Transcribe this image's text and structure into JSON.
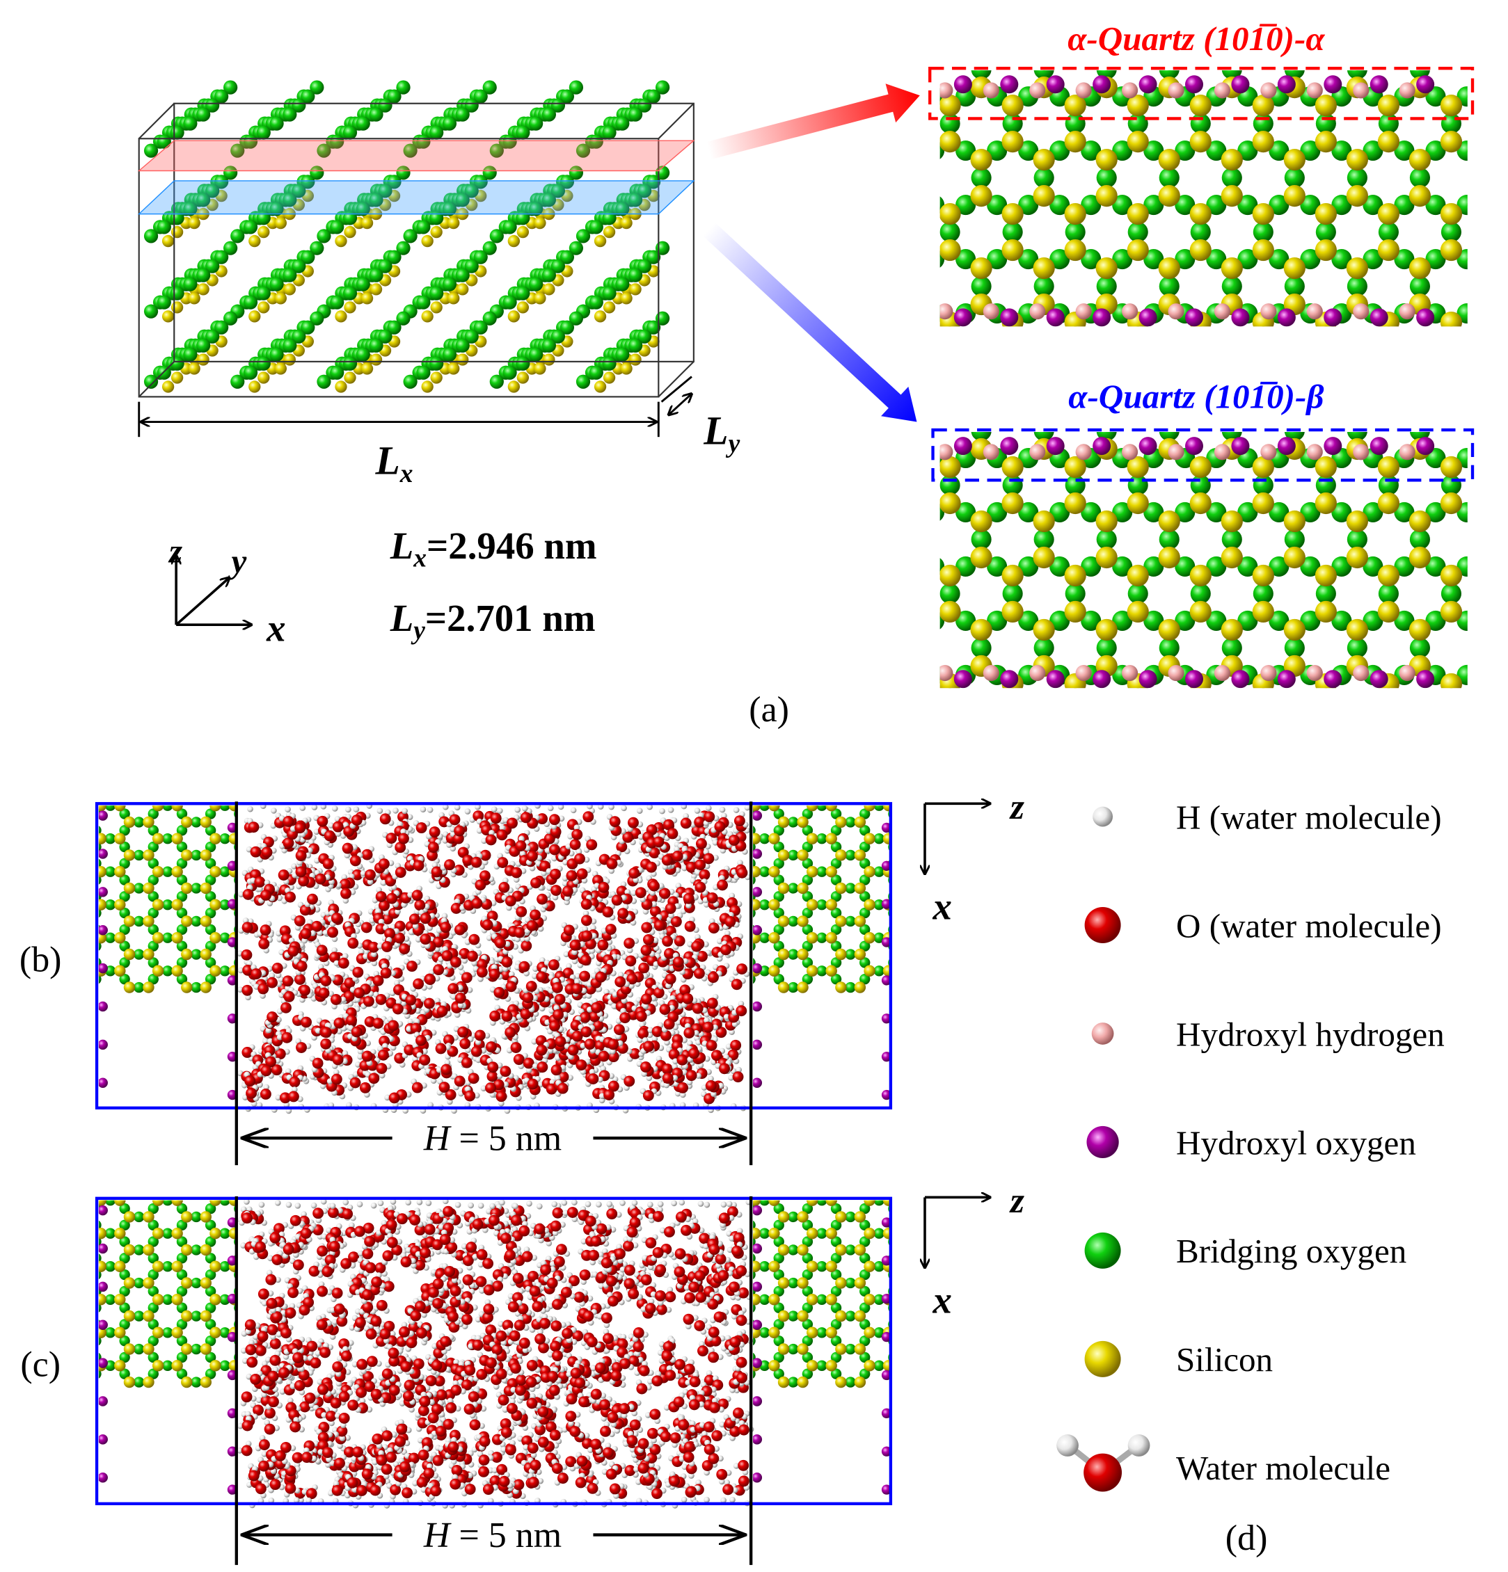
{
  "panel_a": {
    "label": "(a)",
    "box_lx": {
      "main": "L",
      "sub": "x"
    },
    "box_ly": {
      "main": "L",
      "sub": "y"
    },
    "axes": {
      "z": "z",
      "y": "y",
      "x": "x"
    },
    "dims": [
      {
        "main": "L",
        "sub": "x",
        "rest": "=2.946 nm"
      },
      {
        "main": "L",
        "sub": "y",
        "rest": "=2.701 nm"
      }
    ],
    "surface_alpha": "α-Quartz (101̅0)-α",
    "surface_beta": "α-Quartz (101̅0)-β"
  },
  "panel_b": {
    "label": "(b)",
    "axes": {
      "z": "z",
      "x": "x"
    },
    "spacing": {
      "var": "H",
      "rest": " = 5 nm"
    }
  },
  "panel_c": {
    "label": "(c)",
    "axes": {
      "z": "z",
      "x": "x"
    },
    "spacing": {
      "var": "H",
      "rest": " = 5 nm"
    }
  },
  "legend": {
    "label": "(d)",
    "items": [
      "H (water molecule)",
      "O (water molecule)",
      "Hydroxyl hydrogen",
      "Hydroxyl oxygen",
      "Bridging oxygen",
      "Silicon",
      "Water molecule"
    ]
  }
}
